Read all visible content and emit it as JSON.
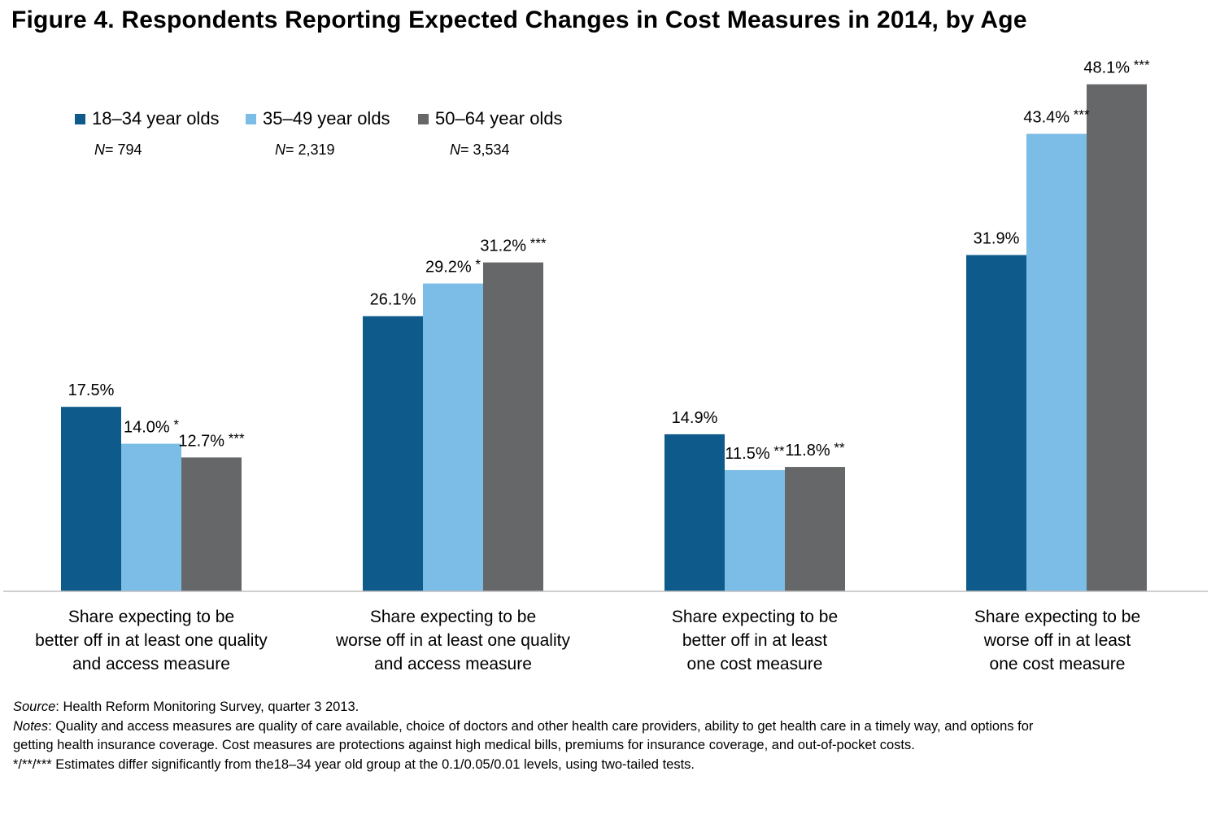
{
  "title": "Figure 4. Respondents Reporting Expected Changes in Cost Measures in 2014, by Age",
  "legend": [
    {
      "label": "18–34 year olds",
      "n_prefix": "N",
      "n_value": "= 794",
      "color": "#0e5a8a"
    },
    {
      "label": "35–49 year olds",
      "n_prefix": "N",
      "n_value": "= 2,319",
      "color": "#7bbde6"
    },
    {
      "label": "50–64 year olds",
      "n_prefix": "N",
      "n_value": "= 3,534",
      "color": "#666769"
    }
  ],
  "chart_data": {
    "type": "bar",
    "title": "Figure 4. Respondents Reporting Expected Changes in Cost Measures in 2014, by Age",
    "categories": [
      "Share expecting to be better off in at least one quality and access measure",
      "Share expecting to be worse off in at least one quality and access measure",
      "Share expecting to be better off in at least one cost measure",
      "Share expecting to be worse off in at least one cost measure"
    ],
    "category_lines": [
      [
        "Share expecting to be",
        "better off in at least one quality",
        "and access measure"
      ],
      [
        "Share expecting to be",
        "worse off in at least one quality",
        "and access measure"
      ],
      [
        "Share expecting to be",
        "better off in at least",
        "one cost measure"
      ],
      [
        "Share expecting to be",
        "worse off in at least",
        "one cost measure"
      ]
    ],
    "series": [
      {
        "name": "18–34 year olds",
        "values": [
          17.5,
          26.1,
          14.9,
          31.9
        ],
        "labels": [
          "17.5%",
          "26.1%",
          "14.9%",
          "31.9%"
        ],
        "significance": [
          "",
          "",
          "",
          ""
        ],
        "color": "#0e5a8a"
      },
      {
        "name": "35–49 year olds",
        "values": [
          14.0,
          29.2,
          11.5,
          43.4
        ],
        "labels": [
          "14.0%",
          "29.2%",
          "11.5%",
          "43.4%"
        ],
        "significance": [
          "*",
          "*",
          "**",
          "***"
        ],
        "color": "#7bbde6"
      },
      {
        "name": "50–64 year olds",
        "values": [
          12.7,
          31.2,
          11.8,
          48.1
        ],
        "labels": [
          "12.7%",
          "31.2%",
          "11.8%",
          "48.1%"
        ],
        "significance": [
          "***",
          "***",
          "**",
          "***"
        ],
        "color": "#666769"
      }
    ],
    "ylim": [
      0,
      50
    ],
    "grid": false,
    "legend_position": "top-left"
  },
  "footer": {
    "source_label": "Source",
    "source_text": ": Health Reform Monitoring Survey, quarter 3 2013.",
    "notes_label": "Notes",
    "notes_text": ": Quality and access measures are quality of care available, choice of doctors and other health care providers, ability to get health care in a timely way, and options for getting health insurance coverage. Cost measures are protections against high medical bills, premiums for insurance coverage, and out-of-pocket costs.",
    "significance_text": "*/**/*** Estimates differ significantly from the18–34 year old group at the 0.1/0.05/0.01 levels, using  two-tailed tests."
  }
}
